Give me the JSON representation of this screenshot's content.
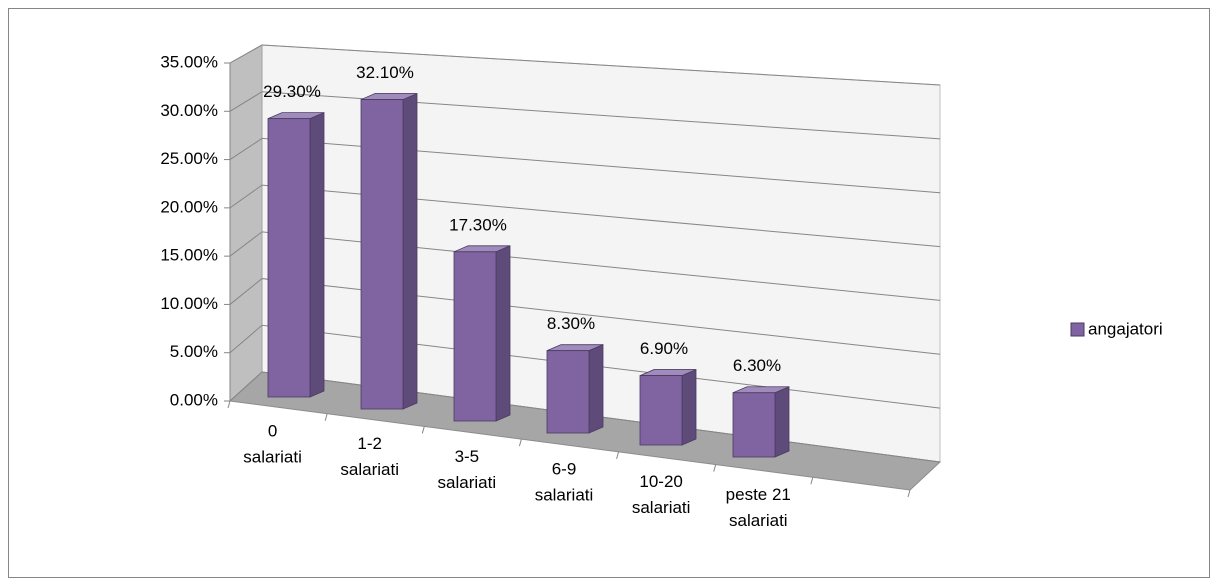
{
  "chart_data": {
    "type": "bar3d",
    "categories": [
      "0 salariati",
      "1-2 salariati",
      "3-5 salariati",
      "6-9 salariati",
      "10-20 salariati",
      "peste 21 salariati"
    ],
    "series": [
      {
        "name": "angajatori",
        "color": "#8064a2",
        "values": [
          29.3,
          32.1,
          17.3,
          8.3,
          6.9,
          6.3
        ],
        "value_labels": [
          "29.30%",
          "32.10%",
          "17.30%",
          "8.30%",
          "6.90%",
          "6.30%"
        ]
      }
    ],
    "ylim": [
      0,
      35
    ],
    "yticks": [
      {
        "value": 0,
        "label": "0.00%"
      },
      {
        "value": 5,
        "label": "5.00%"
      },
      {
        "value": 10,
        "label": "10.00%"
      },
      {
        "value": 15,
        "label": "15.00%"
      },
      {
        "value": 20,
        "label": "20.00%"
      },
      {
        "value": 25,
        "label": "25.00%"
      },
      {
        "value": 30,
        "label": "30.00%"
      },
      {
        "value": 35,
        "label": "35.00%"
      }
    ],
    "grid": true,
    "legend": "right"
  }
}
